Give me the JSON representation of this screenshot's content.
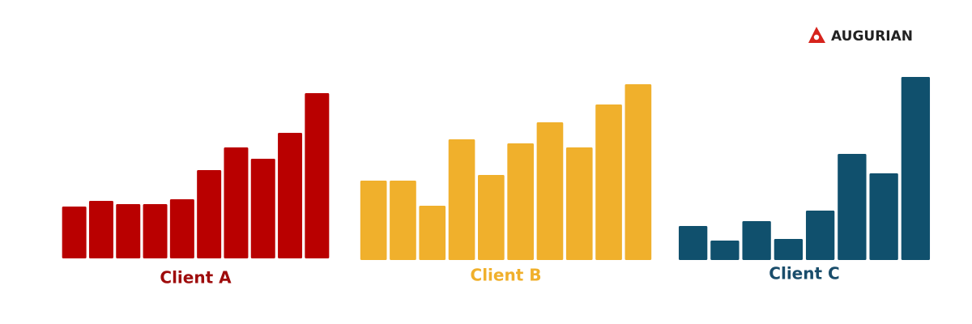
{
  "logo": "AUGURIAN",
  "chart_data": [
    {
      "type": "bar",
      "title": "Client A",
      "color": "#b90000",
      "title_color": "#9e0b0b",
      "values": [
        64,
        71,
        67,
        67,
        73,
        109,
        137,
        123,
        155,
        204
      ],
      "ylim": [
        0,
        230
      ]
    },
    {
      "type": "bar",
      "title": "Client B",
      "color": "#f0b02c",
      "title_color": "#f0b02c",
      "values": [
        98,
        98,
        67,
        149,
        105,
        144,
        170,
        139,
        192,
        217
      ],
      "ylim": [
        0,
        230
      ]
    },
    {
      "type": "bar",
      "title": "Client C",
      "color": "#10506d",
      "title_color": "#1a4d6b",
      "values": [
        42,
        24,
        48,
        26,
        61,
        131,
        107,
        226
      ],
      "ylim": [
        0,
        230
      ]
    }
  ]
}
